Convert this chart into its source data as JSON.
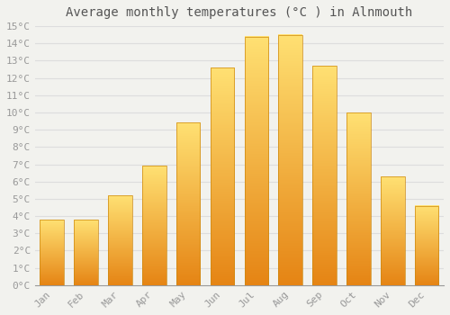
{
  "months": [
    "Jan",
    "Feb",
    "Mar",
    "Apr",
    "May",
    "Jun",
    "Jul",
    "Aug",
    "Sep",
    "Oct",
    "Nov",
    "Dec"
  ],
  "values": [
    3.8,
    3.8,
    5.2,
    6.9,
    9.4,
    12.6,
    14.4,
    14.5,
    12.7,
    10.0,
    6.3,
    4.6
  ],
  "bar_color": "#FCA821",
  "bar_edge_color": "#CC8810",
  "background_color": "#F2F2EE",
  "grid_color": "#DDDDDD",
  "title": "Average monthly temperatures (°C ) in Alnmouth",
  "title_fontsize": 10,
  "tick_label_color": "#999999",
  "ylim": [
    0,
    15
  ],
  "ytick_step": 1,
  "font_family": "monospace"
}
